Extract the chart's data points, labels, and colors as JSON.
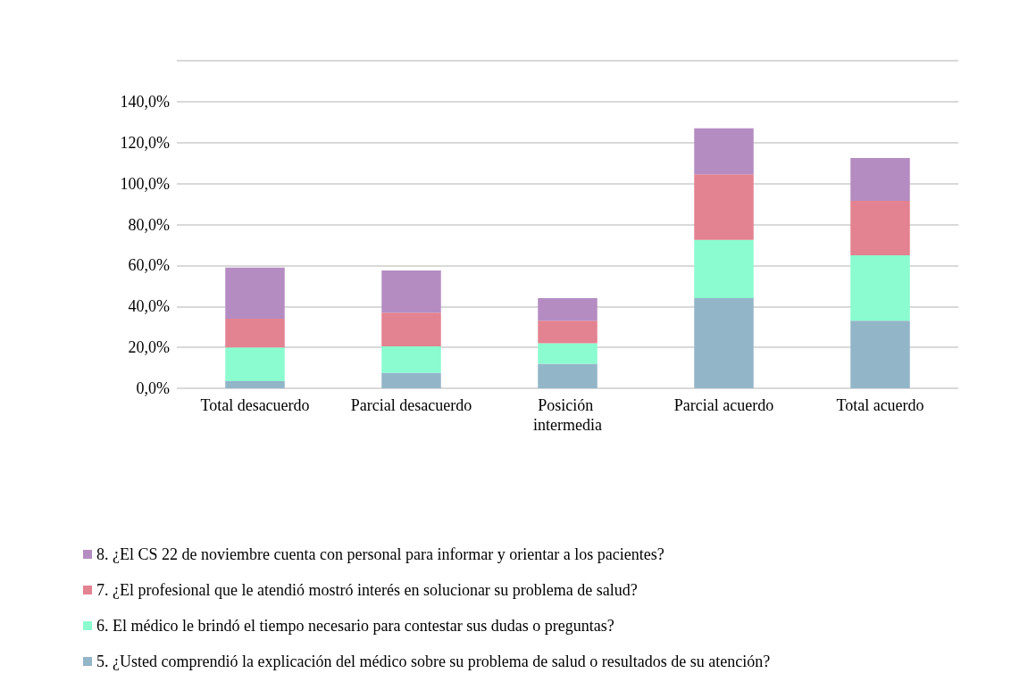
{
  "chart_data": {
    "type": "bar",
    "stacked": true,
    "categories": [
      "Total desacuerdo",
      "Parcial desacuerdo",
      "Posición intermedia",
      "Parcial acuerdo",
      "Total acuerdo"
    ],
    "series": [
      {
        "name": "5. ¿Usted comprendió la explicación del médico sobre su problema de salud o resultados de su atención?",
        "color": "#93b5c8",
        "values": [
          3.5,
          7.5,
          12,
          44,
          33
        ]
      },
      {
        "name": "6. El médico le brindó el tiempo necesario para contestar sus dudas o preguntas?",
        "color": "#8afcd0",
        "values": [
          16.5,
          13,
          10,
          28.5,
          32
        ]
      },
      {
        "name": "7. ¿El profesional que le atendió mostró interés en solucionar su problema de salud?",
        "color": "#e38290",
        "values": [
          14,
          16.5,
          11,
          32,
          26.5
        ]
      },
      {
        "name": "8. ¿El CS 22 de noviembre cuenta con personal para informar y orientar a los pacientes?",
        "color": "#b48cc2",
        "values": [
          25,
          20.5,
          11,
          22.5,
          21
        ]
      }
    ],
    "ylim": [
      0,
      160
    ],
    "yticks": [
      {
        "value": 0,
        "label": "0,0%"
      },
      {
        "value": 20,
        "label": "20,0%"
      },
      {
        "value": 40,
        "label": "40,0%"
      },
      {
        "value": 60,
        "label": "60,0%"
      },
      {
        "value": 80,
        "label": "80,0%"
      },
      {
        "value": 100,
        "label": "100,0%"
      },
      {
        "value": 120,
        "label": "120,0%"
      },
      {
        "value": 140,
        "label": "140,0%"
      },
      {
        "value": 160,
        "label": null
      }
    ],
    "grid": "y",
    "legend": "bottom"
  }
}
